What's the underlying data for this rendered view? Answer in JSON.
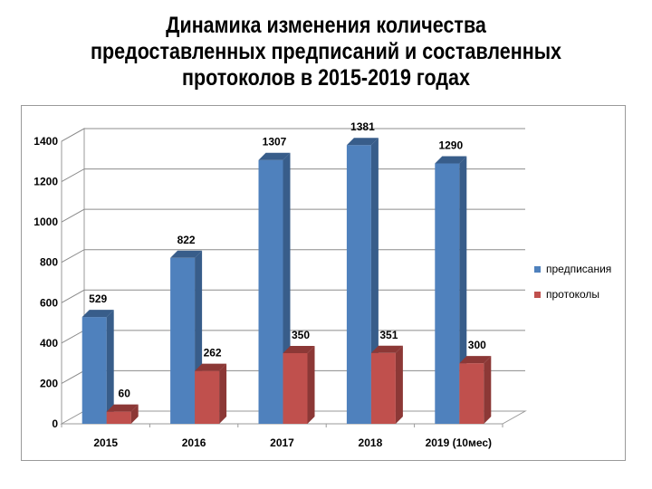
{
  "title_lines": [
    "Динамика изменения количества",
    "предоставленных предписаний и составленных",
    "протоколов в 2015-2019 годах"
  ],
  "colors": {
    "series1": "#4f81bd",
    "series1_dark": "#385d8a",
    "series2": "#c0504d",
    "series2_dark": "#8c3836"
  },
  "chart_data": {
    "type": "bar",
    "categories": [
      "2015",
      "2016",
      "2017",
      "2018",
      "2019 (10мес)"
    ],
    "series": [
      {
        "name": "предписания",
        "values": [
          529,
          822,
          1307,
          1381,
          1290
        ]
      },
      {
        "name": "протоколы",
        "values": [
          60,
          262,
          350,
          351,
          300
        ]
      }
    ],
    "ylim": [
      0,
      1400
    ],
    "yticks": [
      "0",
      "200",
      "400",
      "600",
      "800",
      "1000",
      "1200",
      "1400"
    ],
    "grid": true,
    "legend": "right",
    "data_labels": true
  }
}
